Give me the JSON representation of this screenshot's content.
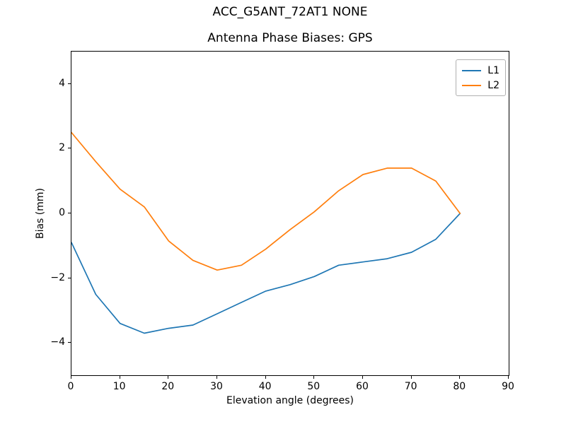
{
  "figure": {
    "background": "#ffffff",
    "frame_color": "#000000"
  },
  "chart_data": {
    "type": "line",
    "title": "ACC_G5ANT_72AT1 NONE",
    "subtitle": "Antenna Phase Biases: GPS",
    "xlabel": "Elevation angle (degrees)",
    "ylabel": "Bias (mm)",
    "xlim": [
      0,
      90
    ],
    "ylim": [
      -5,
      5
    ],
    "x_ticks": [
      0,
      10,
      20,
      30,
      40,
      50,
      60,
      70,
      80,
      90
    ],
    "y_ticks": [
      -4,
      -2,
      0,
      2,
      4
    ],
    "grid": false,
    "legend": {
      "position": "upper-right",
      "entries": [
        "L1",
        "L2"
      ]
    },
    "x": [
      0,
      5,
      10,
      15,
      20,
      25,
      30,
      35,
      40,
      45,
      50,
      55,
      60,
      65,
      70,
      75,
      80
    ],
    "series": [
      {
        "name": "L1",
        "color": "#1f77b4",
        "values": [
          -0.9,
          -2.5,
          -3.4,
          -3.7,
          -3.55,
          -3.45,
          -3.1,
          -2.75,
          -2.4,
          -2.2,
          -1.95,
          -1.6,
          -1.5,
          -1.4,
          -1.2,
          -0.8,
          0.0
        ]
      },
      {
        "name": "L2",
        "color": "#ff7f0e",
        "values": [
          2.5,
          1.6,
          0.75,
          0.2,
          -0.85,
          -1.45,
          -1.75,
          -1.6,
          -1.1,
          -0.5,
          0.05,
          0.7,
          1.2,
          1.4,
          1.4,
          1.0,
          0.0
        ]
      }
    ]
  }
}
